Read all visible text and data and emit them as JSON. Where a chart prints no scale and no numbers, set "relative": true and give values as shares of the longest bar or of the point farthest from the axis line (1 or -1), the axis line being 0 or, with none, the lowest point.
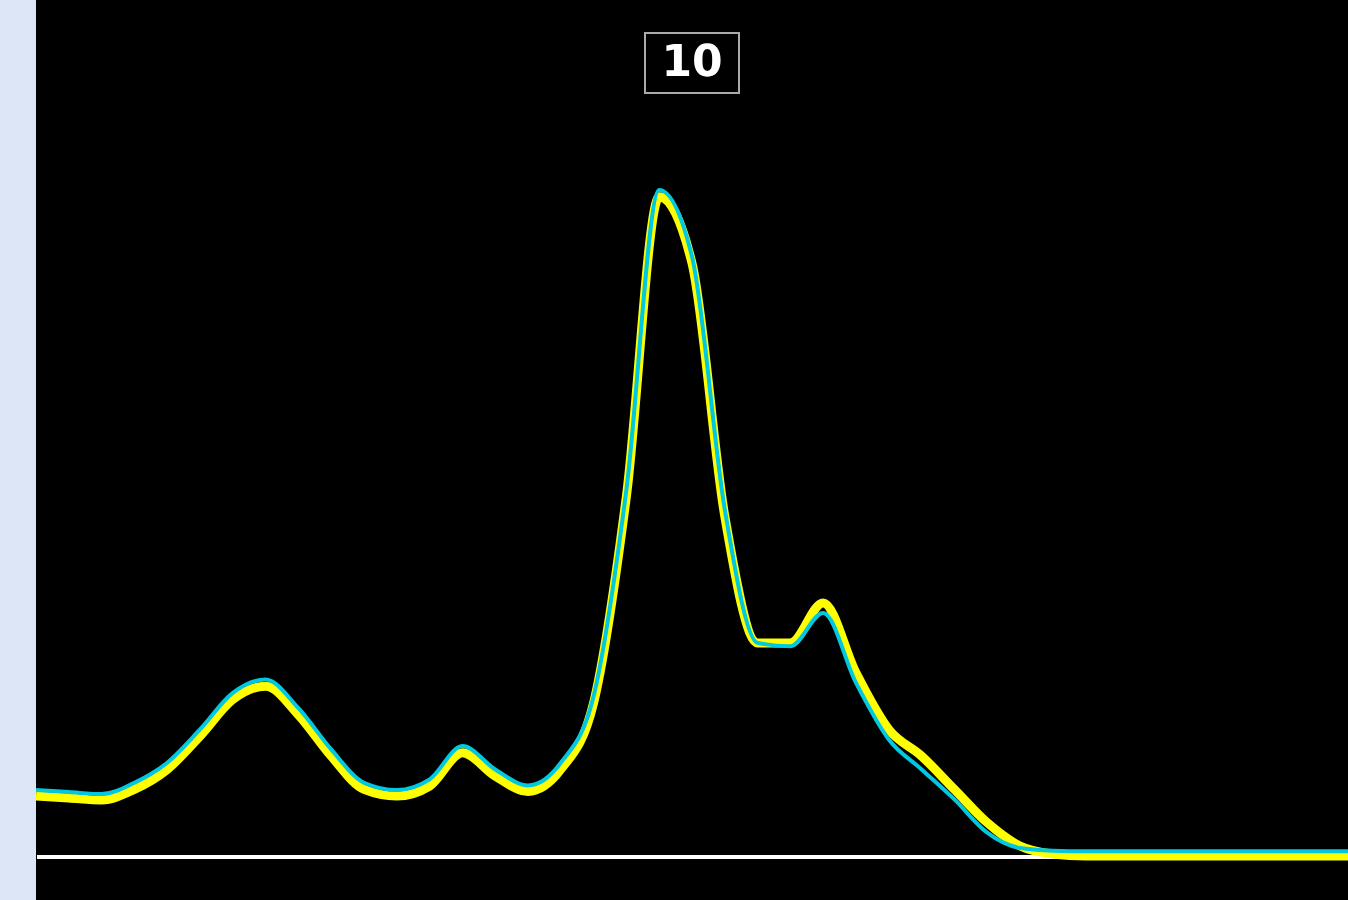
{
  "chart_data": {
    "type": "line",
    "title": "10",
    "relative": true,
    "grid": false,
    "legend": false,
    "marker": "none",
    "line_style": "solid",
    "categories": [
      null,
      null,
      null,
      null,
      null,
      null,
      null,
      null,
      null,
      null,
      null,
      null,
      null,
      null,
      null,
      null,
      null,
      null,
      null,
      null,
      null,
      null,
      null,
      null,
      null,
      null,
      null,
      null,
      null,
      null,
      null,
      null,
      null,
      null,
      null,
      null,
      null,
      null,
      null,
      null,
      null
    ],
    "series": [
      {
        "color": "#ffff00",
        "values": [
          0.09,
          0.087,
          0.084,
          0.1,
          0.13,
          0.18,
          0.235,
          0.255,
          0.212,
          0.15,
          0.1,
          0.09,
          0.105,
          0.155,
          0.12,
          0.097,
          0.13,
          0.23,
          0.54,
          0.99,
          0.89,
          0.51,
          0.32,
          0.32,
          0.38,
          0.275,
          0.19,
          0.15,
          0.1,
          0.05,
          0.015,
          0.003,
          0,
          0,
          0,
          0,
          0,
          0,
          0,
          0,
          0
        ]
      },
      {
        "color": "#00c8e0",
        "values": [
          0.099,
          0.096,
          0.093,
          0.11,
          0.14,
          0.19,
          0.245,
          0.265,
          0.222,
          0.16,
          0.11,
          0.099,
          0.115,
          0.165,
          0.13,
          0.106,
          0.14,
          0.24,
          0.55,
          1.0,
          0.9,
          0.52,
          0.32,
          0.315,
          0.365,
          0.26,
          0.175,
          0.13,
          0.085,
          0.035,
          0.012,
          0.008,
          0.007,
          0.007,
          0.007,
          0.007,
          0.007,
          0.007,
          0.007,
          0.007,
          0.007
        ]
      }
    ]
  }
}
